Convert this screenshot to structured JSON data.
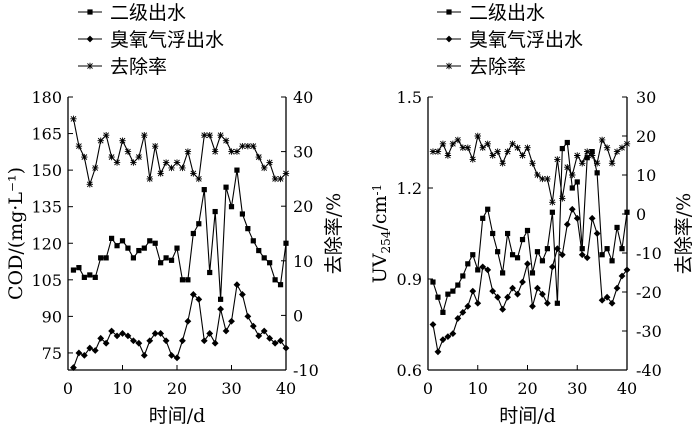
{
  "chart_data": [
    {
      "type": "line",
      "x": [
        1,
        2,
        3,
        4,
        5,
        6,
        7,
        8,
        9,
        10,
        11,
        12,
        13,
        14,
        15,
        16,
        17,
        18,
        19,
        20,
        21,
        22,
        23,
        24,
        25,
        26,
        27,
        28,
        29,
        30,
        31,
        32,
        33,
        34,
        35,
        36,
        37,
        38,
        39,
        40
      ],
      "xlabel": "时间/d",
      "ylabel": "COD/(mg·L⁻¹)",
      "y2label": "去除率/%",
      "xlim": [
        0,
        40
      ],
      "ylim": [
        68,
        180
      ],
      "y2lim": [
        -10,
        40
      ],
      "xticks": [
        0,
        10,
        20,
        30,
        40
      ],
      "yticks": [
        75,
        90,
        105,
        120,
        135,
        150,
        165,
        180
      ],
      "y2ticks": [
        -10,
        0,
        10,
        20,
        30,
        40
      ],
      "legend_position": "top-left",
      "series": [
        {
          "name": "二级出水",
          "marker": "square",
          "axis": "left",
          "values": [
            109,
            110,
            106,
            107,
            106,
            114,
            114,
            122,
            119,
            121,
            118,
            114,
            117,
            118,
            121,
            120,
            112,
            114,
            113,
            118,
            105,
            105,
            124,
            128,
            142,
            108,
            133,
            97,
            143,
            135,
            150,
            132,
            126,
            121,
            117,
            114,
            112,
            105,
            103,
            120
          ]
        },
        {
          "name": "臭氧气浮出水",
          "marker": "diamond",
          "axis": "left",
          "values": [
            69,
            75,
            74,
            77,
            76,
            81,
            79,
            84,
            82,
            83,
            82,
            80,
            79,
            74,
            80,
            83,
            83,
            80,
            74,
            73,
            80,
            88,
            99,
            97,
            80,
            83,
            79,
            93,
            84,
            88,
            103,
            99,
            90,
            86,
            82,
            84,
            81,
            79,
            80,
            77
          ]
        },
        {
          "name": "去除率",
          "marker": "asterisk",
          "axis": "right",
          "values": [
            36,
            31,
            29,
            24,
            27,
            32,
            33,
            29,
            28,
            32,
            30,
            28,
            29,
            33,
            25,
            31,
            26,
            28,
            27,
            28,
            27,
            30,
            26,
            25,
            33,
            33,
            30,
            33,
            32,
            30,
            30,
            31,
            31,
            31,
            29,
            27,
            28,
            25,
            25,
            26
          ]
        }
      ]
    },
    {
      "type": "line",
      "x": [
        1,
        2,
        3,
        4,
        5,
        6,
        7,
        8,
        9,
        10,
        11,
        12,
        13,
        14,
        15,
        16,
        17,
        18,
        19,
        20,
        21,
        22,
        23,
        24,
        25,
        26,
        27,
        28,
        29,
        30,
        31,
        32,
        33,
        34,
        35,
        36,
        37,
        38,
        39,
        40
      ],
      "xlabel": "时间/d",
      "ylabel": "UV254/cm⁻¹",
      "ylabel_main": "UV",
      "ylabel_sub": "254",
      "ylabel_unit": "/cm",
      "ylabel_sup": "-1",
      "y2label": "去除率/%",
      "xlim": [
        0,
        40
      ],
      "ylim": [
        0.6,
        1.5
      ],
      "y2lim": [
        -40,
        30
      ],
      "xticks": [
        0,
        10,
        20,
        30,
        40
      ],
      "yticks": [
        0.6,
        0.9,
        1.2,
        1.5
      ],
      "ytick_labels": [
        "0.6",
        "0.9",
        "1.2",
        "1.5"
      ],
      "y2ticks": [
        -40,
        -30,
        -20,
        -10,
        0,
        10,
        20,
        30
      ],
      "legend_position": "top-left",
      "series": [
        {
          "name": "二级出水",
          "marker": "square",
          "axis": "left",
          "values": [
            0.89,
            0.84,
            0.79,
            0.85,
            0.86,
            0.88,
            0.91,
            0.95,
            0.98,
            0.93,
            1.1,
            1.13,
            1.05,
            0.99,
            0.92,
            1.05,
            0.98,
            0.97,
            1.03,
            1.06,
            0.92,
            0.99,
            0.96,
            1.0,
            1.12,
            0.82,
            1.33,
            1.35,
            1.2,
            1.22,
            1.0,
            1.3,
            1.32,
            1.25,
            0.98,
            1.0,
            0.96,
            1.07,
            1.0,
            1.12
          ]
        },
        {
          "name": "臭氧气浮出水",
          "marker": "diamond",
          "axis": "left",
          "values": [
            0.75,
            0.66,
            0.7,
            0.71,
            0.72,
            0.77,
            0.79,
            0.81,
            0.86,
            0.82,
            0.94,
            0.93,
            0.86,
            0.84,
            0.8,
            0.84,
            0.87,
            0.85,
            0.89,
            0.95,
            0.81,
            0.87,
            0.85,
            0.82,
            0.94,
            1.0,
            0.98,
            1.08,
            1.13,
            1.1,
            0.98,
            0.97,
            1.1,
            1.05,
            0.83,
            0.84,
            0.82,
            0.87,
            0.91,
            0.93
          ]
        },
        {
          "name": "去除率",
          "marker": "asterisk",
          "axis": "right",
          "values": [
            16,
            16,
            18,
            15,
            18,
            19,
            17,
            17,
            14,
            20,
            17,
            18,
            15,
            16,
            13,
            16,
            18,
            17,
            15,
            17,
            13,
            10,
            9,
            9,
            3,
            14,
            4,
            12,
            10,
            15,
            13,
            16,
            15,
            13,
            19,
            17,
            13,
            16,
            17,
            18
          ]
        }
      ]
    }
  ]
}
